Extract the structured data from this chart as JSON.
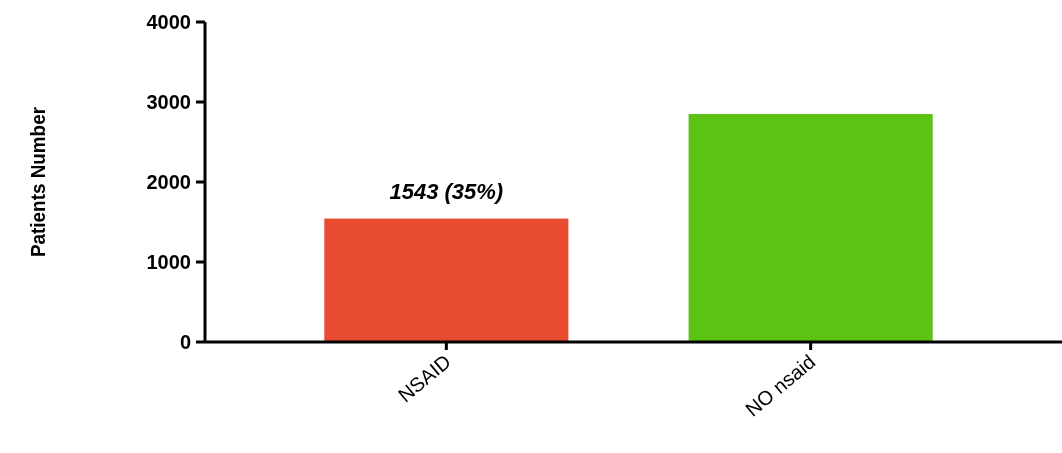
{
  "chart_data": {
    "type": "bar",
    "ylabel": "Patients Number",
    "categories": [
      "NSAID",
      "NO nsaid"
    ],
    "values": [
      1543,
      2850
    ],
    "colors": [
      "#e84a32",
      "#5cc214"
    ],
    "value_labels": [
      "1543 (35%)",
      null
    ],
    "ylim": [
      0,
      4000
    ],
    "yticks": [
      0,
      1000,
      2000,
      3000,
      4000
    ],
    "grid": false
  }
}
